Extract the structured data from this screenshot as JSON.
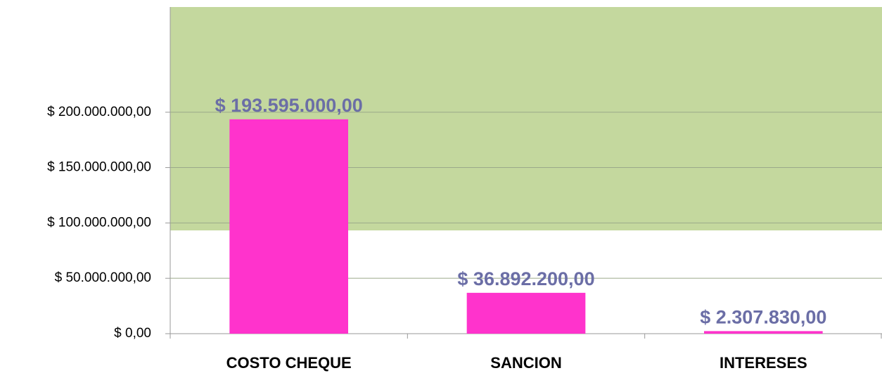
{
  "chart_data": {
    "type": "bar",
    "categories": [
      "COSTO CHEQUE",
      "SANCION",
      "INTERESES"
    ],
    "values": [
      193595000,
      36892200,
      2307830
    ],
    "value_labels": [
      "$ 193.595.000,00",
      "$ 36.892.200,00",
      "$ 2.307.830,00"
    ],
    "color": "#ff33cc",
    "ylim": [
      0,
      295000000
    ],
    "yticks": [
      {
        "value": 0,
        "label": "$ 0,00"
      },
      {
        "value": 50000000,
        "label": "$ 50.000.000,00"
      },
      {
        "value": 100000000,
        "label": "$ 100.000.000,00"
      },
      {
        "value": 150000000,
        "label": "$ 150.000.000,00"
      },
      {
        "value": 200000000,
        "label": "$ 200.000.000,00"
      }
    ],
    "grid": true
  }
}
